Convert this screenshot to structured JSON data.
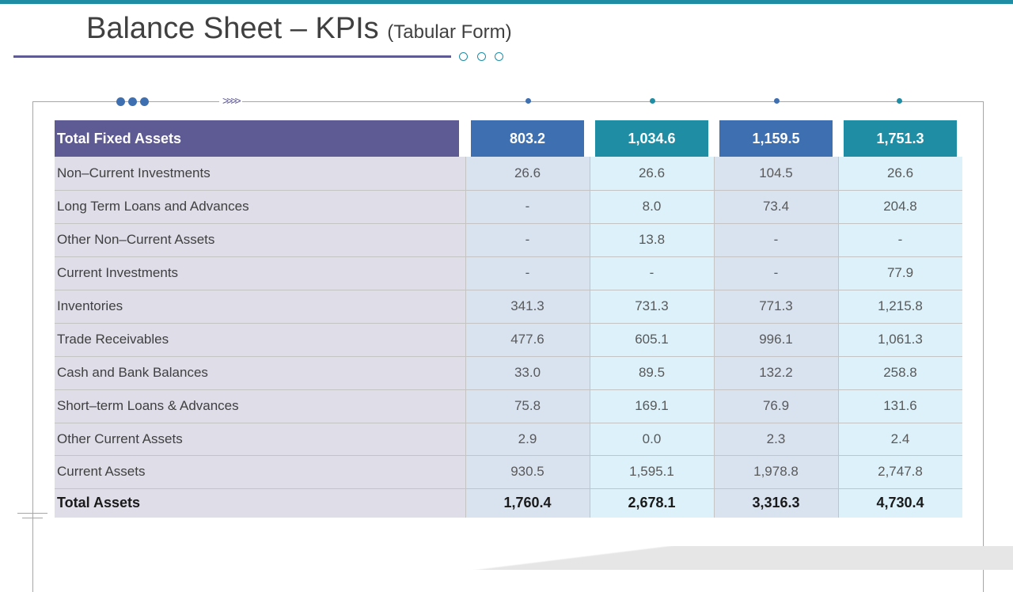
{
  "title": {
    "main": "Balance Sheet – KPIs",
    "sub": "(Tabular Form)"
  },
  "colors": {
    "accent_teal": "#1f8ea5",
    "accent_purple": "#5e5a93",
    "accent_blue": "#3e6fb0",
    "label_bg": "#dedde8",
    "col_bg_a": "#d9e3f0",
    "col_bg_b": "#dcf1f9"
  },
  "table": {
    "header": {
      "label": "Total Fixed Assets",
      "values": [
        "803.2",
        "1,034.6",
        "1,159.5",
        "1,751.3"
      ]
    },
    "rows": [
      {
        "label": "Non–Current Investments",
        "values": [
          "26.6",
          "26.6",
          "104.5",
          "26.6"
        ]
      },
      {
        "label": "Long Term Loans and Advances",
        "values": [
          "-",
          "8.0",
          "73.4",
          "204.8"
        ]
      },
      {
        "label": "Other Non–Current Assets",
        "values": [
          "-",
          "13.8",
          "-",
          "-"
        ]
      },
      {
        "label": "Current Investments",
        "values": [
          "-",
          "-",
          "-",
          "77.9"
        ]
      },
      {
        "label": "Inventories",
        "values": [
          "341.3",
          "731.3",
          "771.3",
          "1,215.8"
        ]
      },
      {
        "label": "Trade Receivables",
        "values": [
          "477.6",
          "605.1",
          "996.1",
          "1,061.3"
        ]
      },
      {
        "label": "Cash and Bank Balances",
        "values": [
          "33.0",
          "89.5",
          "132.2",
          "258.8"
        ]
      },
      {
        "label": "Short–term Loans & Advances",
        "values": [
          "75.8",
          "169.1",
          "76.9",
          "131.6"
        ]
      },
      {
        "label": "Other Current Assets",
        "values": [
          "2.9",
          "0.0",
          "2.3",
          "2.4"
        ]
      },
      {
        "label": "Current Assets",
        "values": [
          "930.5",
          "1,595.1",
          "1,978.8",
          "2,747.8"
        ]
      }
    ],
    "total": {
      "label": "Total Assets",
      "values": [
        "1,760.4",
        "2,678.1",
        "3,316.3",
        "4,730.4"
      ]
    }
  }
}
